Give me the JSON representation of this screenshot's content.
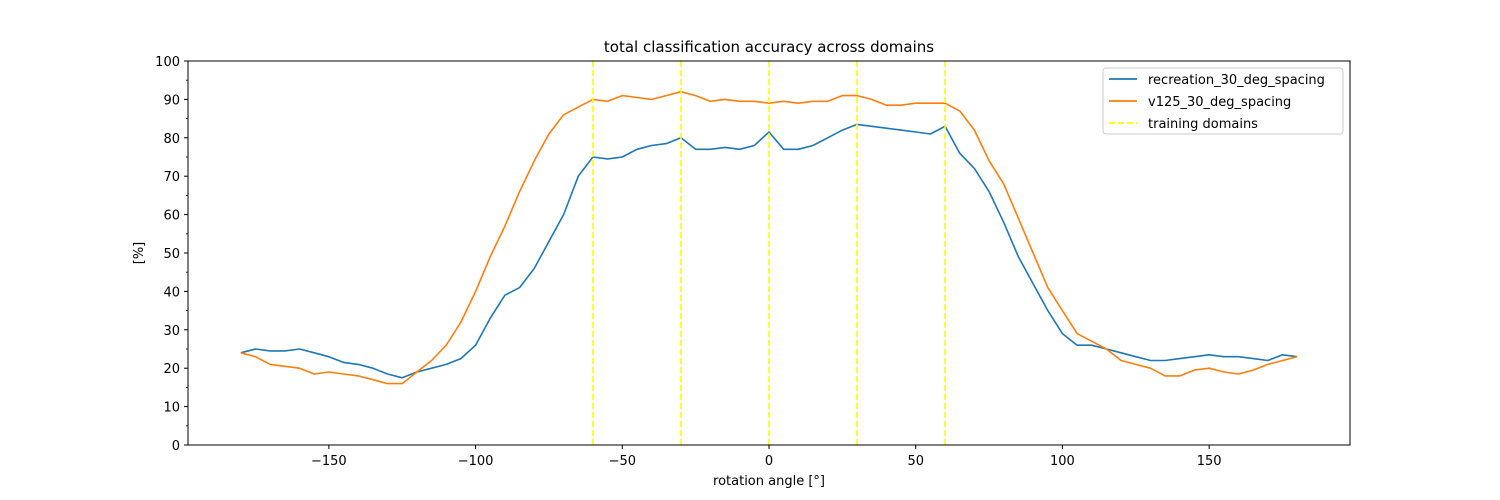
{
  "chart_data": {
    "type": "line",
    "title": "total classification accuracy across domains",
    "xlabel": "rotation angle [°]",
    "ylabel": "[%]",
    "xlim": [
      -198,
      198
    ],
    "ylim": [
      0,
      100
    ],
    "xticks": [
      -150,
      -100,
      -50,
      0,
      50,
      100,
      150
    ],
    "yticks": [
      0,
      10,
      20,
      30,
      40,
      50,
      60,
      70,
      80,
      90,
      100
    ],
    "grid": false,
    "legend": "top-right",
    "series": [
      {
        "name": "recreation_30_deg_spacing",
        "color": "#1f77b4",
        "x": [
          -180,
          -175,
          -170,
          -165,
          -160,
          -155,
          -150,
          -145,
          -140,
          -135,
          -130,
          -125,
          -120,
          -115,
          -110,
          -105,
          -100,
          -95,
          -90,
          -85,
          -80,
          -75,
          -70,
          -65,
          -60,
          -55,
          -50,
          -45,
          -40,
          -35,
          -30,
          -25,
          -20,
          -15,
          -10,
          -5,
          0,
          5,
          10,
          15,
          20,
          25,
          30,
          35,
          40,
          45,
          50,
          55,
          60,
          65,
          70,
          75,
          80,
          85,
          90,
          95,
          100,
          105,
          110,
          115,
          120,
          125,
          130,
          135,
          140,
          145,
          150,
          155,
          160,
          165,
          170,
          175,
          180
        ],
        "values": [
          24,
          25,
          24.5,
          24.5,
          25,
          24,
          23,
          21.5,
          21,
          20,
          18.5,
          17.5,
          19,
          20,
          21,
          22.5,
          26,
          33,
          39,
          41,
          46,
          53,
          60,
          70,
          75,
          74.5,
          75,
          77,
          78,
          78.5,
          80,
          77,
          77,
          77.5,
          77,
          78,
          81.5,
          77,
          77,
          78,
          80,
          82,
          83.5,
          83,
          82.5,
          82,
          81.5,
          81,
          83,
          76,
          72,
          66,
          58,
          49,
          42,
          35,
          29,
          26,
          26,
          25,
          24,
          23,
          22,
          22,
          22.5,
          23,
          23.5,
          23,
          23,
          22.5,
          22,
          23.5,
          23
        ]
      },
      {
        "name": "v125_30_deg_spacing",
        "color": "#ff7f0e",
        "x": [
          -180,
          -175,
          -170,
          -165,
          -160,
          -155,
          -150,
          -145,
          -140,
          -135,
          -130,
          -125,
          -120,
          -115,
          -110,
          -105,
          -100,
          -95,
          -90,
          -85,
          -80,
          -75,
          -70,
          -65,
          -60,
          -55,
          -50,
          -45,
          -40,
          -35,
          -30,
          -25,
          -20,
          -15,
          -10,
          -5,
          0,
          5,
          10,
          15,
          20,
          25,
          30,
          35,
          40,
          45,
          50,
          55,
          60,
          65,
          70,
          75,
          80,
          85,
          90,
          95,
          100,
          105,
          110,
          115,
          120,
          125,
          130,
          135,
          140,
          145,
          150,
          155,
          160,
          165,
          170,
          175,
          180
        ],
        "values": [
          24,
          23,
          21,
          20.5,
          20,
          18.5,
          19,
          18.5,
          18,
          17,
          16,
          16,
          19,
          22,
          26,
          32,
          40,
          49,
          57,
          66,
          74,
          81,
          86,
          88,
          90,
          89.5,
          91,
          90.5,
          90,
          91,
          92,
          91,
          89.5,
          90,
          89.5,
          89.5,
          89,
          89.5,
          89,
          89.5,
          89.5,
          91,
          91,
          90,
          88.5,
          88.5,
          89,
          89,
          89,
          87,
          82,
          74,
          68,
          59,
          50,
          41,
          35,
          29,
          27,
          25,
          22,
          21,
          20,
          18,
          18,
          19.5,
          20,
          19,
          18.5,
          19.5,
          21,
          22,
          23
        ]
      }
    ],
    "vlines": {
      "name": "training domains",
      "color": "#ffff00",
      "x": [
        -60,
        -30,
        0,
        30,
        60
      ]
    }
  }
}
